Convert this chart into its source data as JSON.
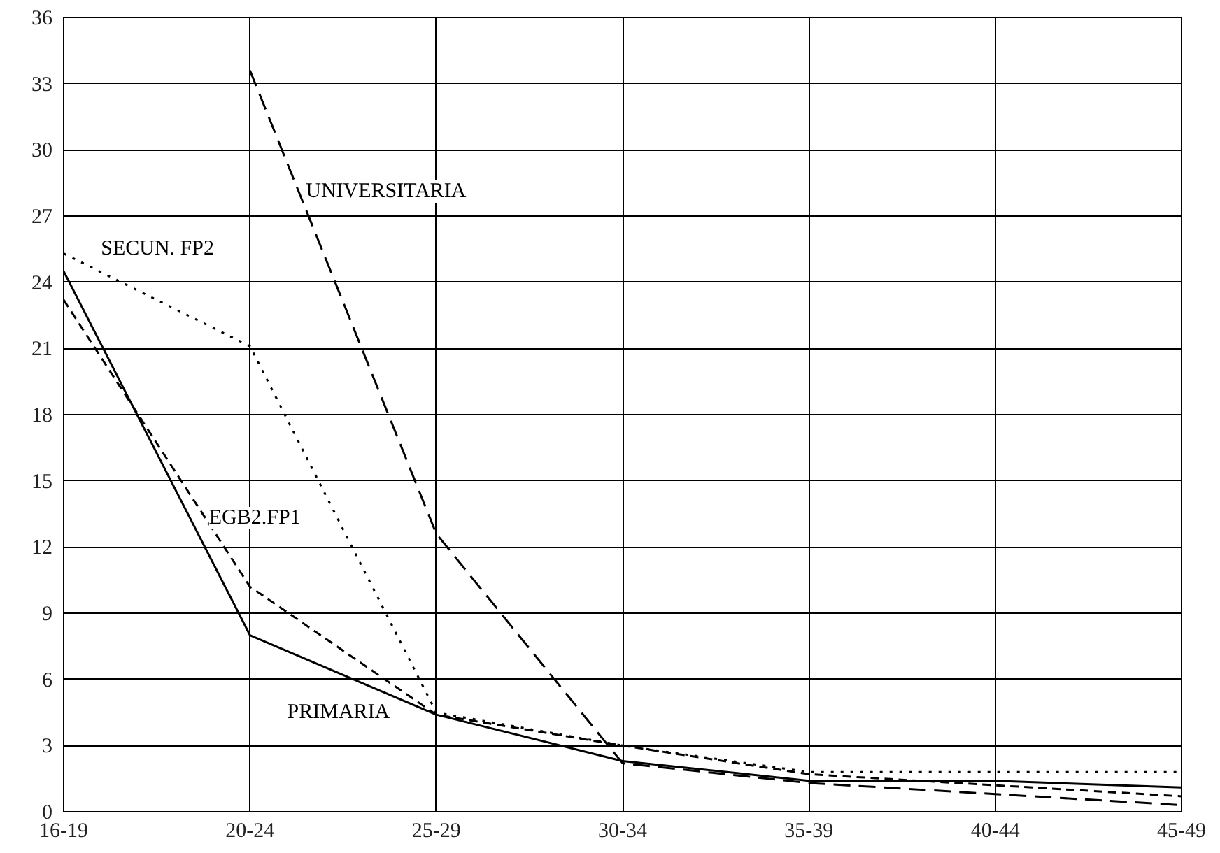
{
  "chart_data": {
    "type": "line",
    "categories": [
      "16-19",
      "20-24",
      "25-29",
      "30-34",
      "35-39",
      "40-44",
      "45-49"
    ],
    "ylim": [
      0,
      36
    ],
    "yticks": [
      0,
      3,
      6,
      9,
      12,
      15,
      18,
      21,
      24,
      27,
      30,
      33,
      36
    ],
    "grid": true,
    "legend": false,
    "marker": "none",
    "series": [
      {
        "name": "PRIMARIA",
        "color": "#000000",
        "line_style": "solid",
        "values": [
          24.5,
          8.0,
          4.4,
          2.3,
          1.4,
          1.4,
          1.1
        ]
      },
      {
        "name": "EGB2.FP1",
        "color": "#000000",
        "line_style": "dashed",
        "values": [
          23.2,
          10.2,
          4.4,
          3.0,
          1.7,
          1.2,
          0.7
        ]
      },
      {
        "name": "SECUN. FP2",
        "color": "#000000",
        "line_style": "dotted",
        "values": [
          25.3,
          21.1,
          4.5,
          3.0,
          1.8,
          1.8,
          1.8
        ]
      },
      {
        "name": "UNIVERSITARIA",
        "color": "#000000",
        "line_style": "longdash",
        "values": [
          null,
          33.6,
          12.6,
          2.2,
          1.3,
          0.8,
          0.3
        ]
      }
    ]
  }
}
